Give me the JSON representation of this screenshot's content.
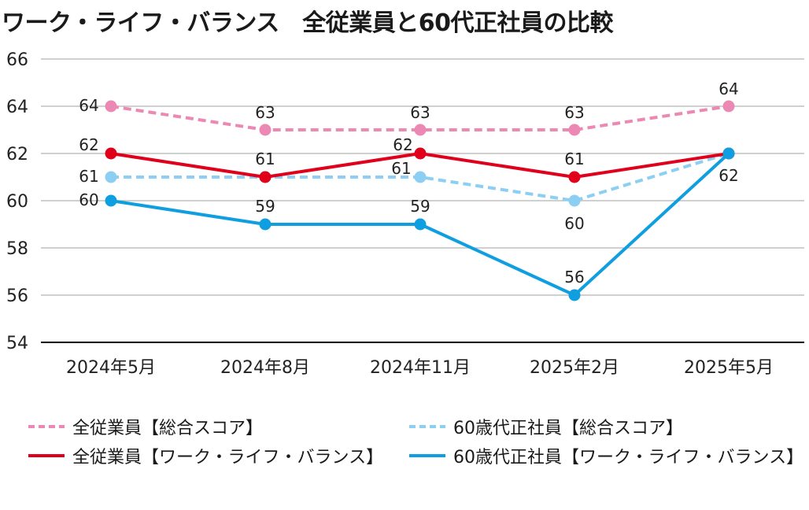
{
  "chart_data": {
    "type": "line",
    "title": "ワーク・ライフ・バランス　全従業員と60代正社員の比較",
    "categories": [
      "2024年5月",
      "2024年8月",
      "2024年11月",
      "2025年2月",
      "2025年5月"
    ],
    "ylim": [
      54,
      66
    ],
    "yticks": [
      54,
      56,
      58,
      60,
      62,
      64,
      66
    ],
    "grid": true,
    "legend_position": "bottom",
    "series": [
      {
        "name": "全従業員【総合スコア】",
        "values": [
          64,
          63,
          63,
          63,
          64
        ],
        "color": "#ec88b4",
        "dashed": true,
        "labels": [
          "64",
          "63",
          "63",
          "63",
          "64"
        ]
      },
      {
        "name": "60歳代正社員【総合スコア】",
        "values": [
          61,
          61,
          61,
          60,
          62
        ],
        "color": "#8ccff2",
        "dashed": true,
        "labels": [
          "61",
          "",
          "61",
          "60",
          ""
        ]
      },
      {
        "name": "全従業員【ワーク・ライフ・バランス】",
        "values": [
          62,
          61,
          62,
          61,
          62
        ],
        "color": "#e0001b",
        "dashed": false,
        "labels": [
          "62",
          "61",
          "62",
          "61",
          ""
        ]
      },
      {
        "name": "60歳代正社員【ワーク・ライフ・バランス】",
        "values": [
          60,
          59,
          59,
          56,
          62
        ],
        "color": "#0f9fe0",
        "dashed": false,
        "labels": [
          "60",
          "59",
          "59",
          "56",
          "62"
        ]
      }
    ]
  }
}
